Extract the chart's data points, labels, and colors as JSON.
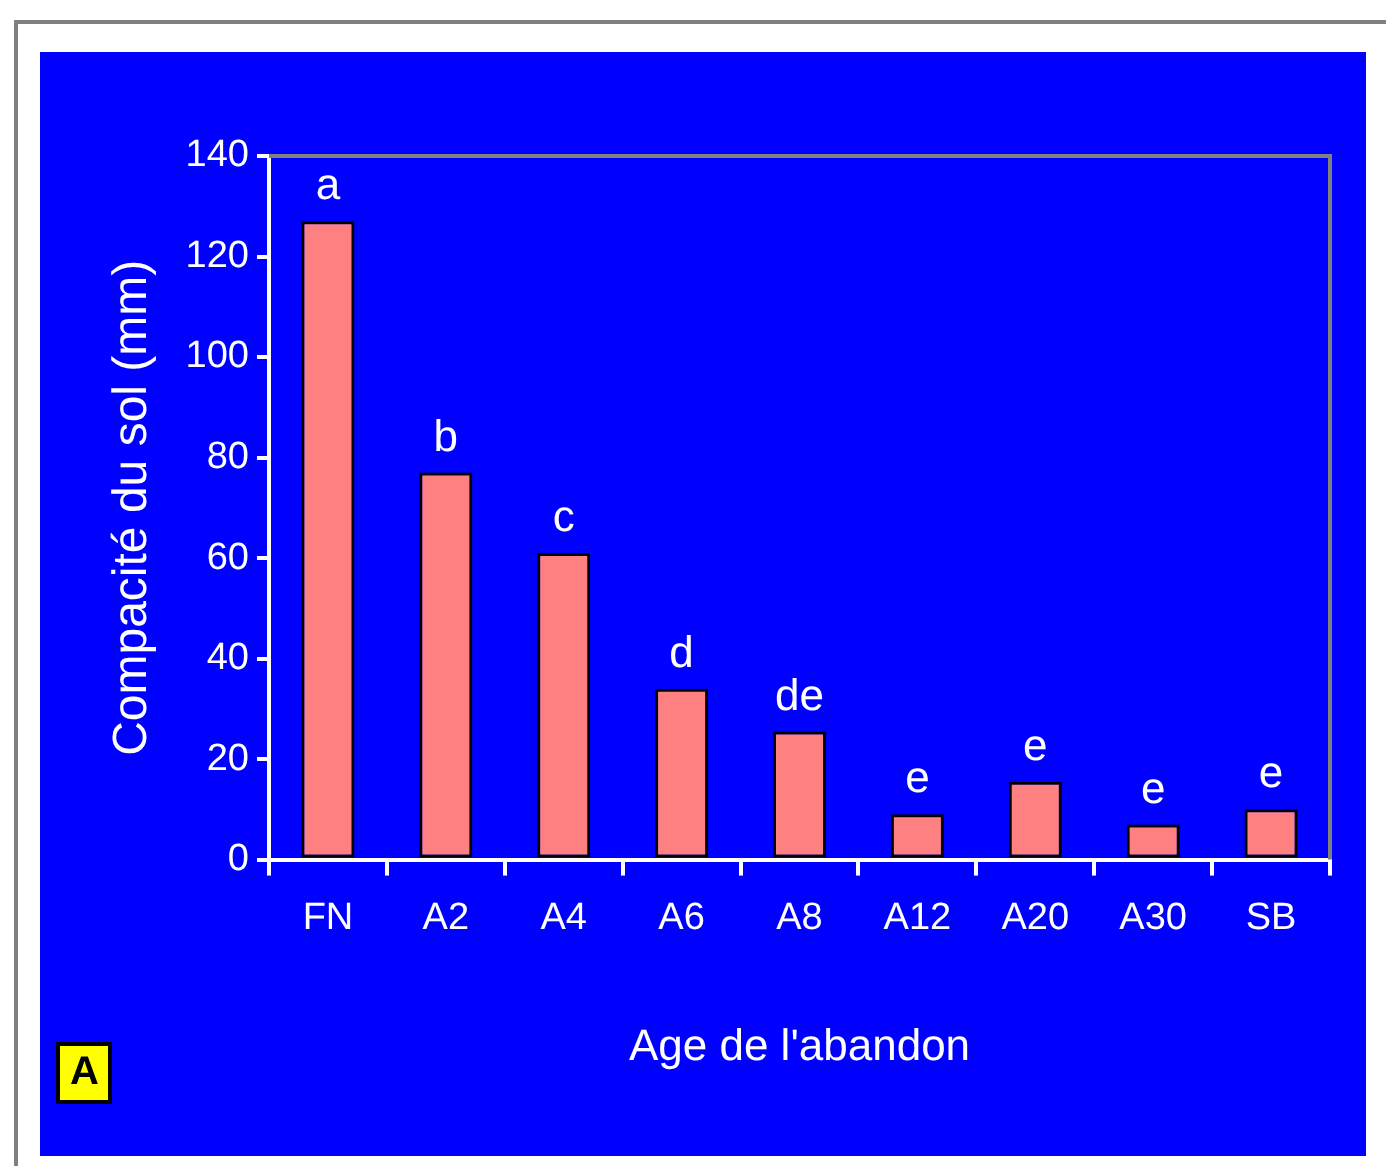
{
  "chart_data": {
    "type": "bar",
    "xlabel": "Age de l'abandon",
    "ylabel": "Compacité du sol (mm)",
    "categories": [
      "FN",
      "A2",
      "A4",
      "A6",
      "A8",
      "A12",
      "A20",
      "A30",
      "SB"
    ],
    "values": [
      127,
      77,
      61,
      34,
      25.5,
      9,
      15.5,
      7,
      10
    ],
    "color": "#ff8080",
    "ylim": [
      0,
      140
    ],
    "yticks": [
      0,
      20,
      40,
      60,
      80,
      100,
      120,
      140
    ],
    "grid": false,
    "legend": false,
    "annotations": [
      {
        "text": "a",
        "x": "FN",
        "y": 127
      },
      {
        "text": "b",
        "x": "A2",
        "y": 77
      },
      {
        "text": "c",
        "x": "A4",
        "y": 61
      },
      {
        "text": "d",
        "x": "A6",
        "y": 34
      },
      {
        "text": "de",
        "x": "A8",
        "y": 25.5
      },
      {
        "text": "e",
        "x": "A12",
        "y": 9
      },
      {
        "text": "e",
        "x": "A20",
        "y": 15.5
      },
      {
        "text": "e",
        "x": "A30",
        "y": 7
      },
      {
        "text": "e",
        "x": "SB",
        "y": 10
      },
      "A"
    ]
  }
}
